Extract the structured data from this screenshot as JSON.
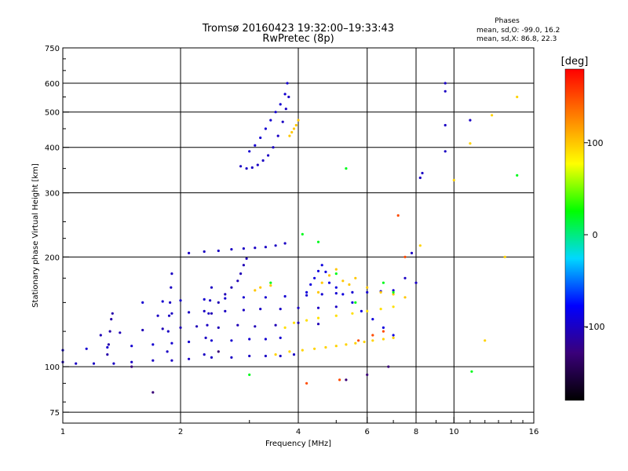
{
  "chart_data": {
    "type": "scatter",
    "title": "Tromsø 20160423 19:32:00–19:33:43",
    "subtitle": "RwPretec (8p)",
    "xlabel": "Frequency [MHz]",
    "ylabel": "Stationary phase Virtual Height [km]",
    "xscale": "log",
    "yscale": "log",
    "xlim": [
      1,
      16
    ],
    "ylim": [
      70,
      750
    ],
    "x_ticks": [
      1,
      2,
      4,
      6,
      8,
      10,
      16
    ],
    "x_tick_labels": [
      "1",
      "2",
      "4",
      "6",
      "8",
      "10",
      "16"
    ],
    "y_ticks": [
      75,
      100,
      200,
      300,
      400,
      500,
      600,
      750
    ],
    "y_tick_labels": [
      "75",
      "100",
      "200",
      "300",
      "400",
      "500",
      "600",
      "750"
    ],
    "grid": true,
    "stats": {
      "heading": "Phases",
      "line1": "mean, sd,O: -99.0, 16.2",
      "line2": "mean, sd,X:  86.8, 22.3"
    },
    "colorbar": {
      "label": "[deg]",
      "range": [
        -180,
        180
      ],
      "tick_values": [
        100,
        0,
        -100
      ],
      "tick_labels": [
        "100",
        "0",
        "-100"
      ],
      "colors": [
        "#000000",
        "#3a007a",
        "#0000ff",
        "#00d8ff",
        "#00ff00",
        "#ffff00",
        "#ff8000",
        "#ff0000"
      ]
    },
    "series": [
      {
        "trace": "o-low",
        "phase": -100,
        "points": [
          [
            1.0,
            103
          ],
          [
            1.08,
            102
          ],
          [
            1.2,
            102
          ],
          [
            1.35,
            102
          ],
          [
            1.5,
            103
          ],
          [
            1.7,
            104
          ],
          [
            1.9,
            104
          ],
          [
            2.1,
            105
          ],
          [
            2.4,
            106
          ],
          [
            2.7,
            106
          ],
          [
            3.0,
            107
          ],
          [
            3.3,
            107
          ],
          [
            3.6,
            107
          ],
          [
            3.9,
            108
          ]
        ]
      },
      {
        "trace": "o-112",
        "phase": -95,
        "points": [
          [
            1.0,
            111
          ],
          [
            1.15,
            112
          ],
          [
            1.3,
            113
          ],
          [
            1.5,
            114
          ],
          [
            1.7,
            115
          ],
          [
            1.9,
            116
          ],
          [
            2.1,
            117
          ],
          [
            2.4,
            118
          ],
          [
            2.7,
            118
          ],
          [
            3.0,
            119
          ],
          [
            3.3,
            119
          ],
          [
            3.6,
            120
          ]
        ]
      },
      {
        "trace": "o-125",
        "phase": -105,
        "points": [
          [
            1.25,
            122
          ],
          [
            1.4,
            124
          ],
          [
            1.6,
            126
          ],
          [
            1.8,
            127
          ],
          [
            2.0,
            128
          ],
          [
            2.2,
            129
          ],
          [
            2.5,
            128
          ],
          [
            2.8,
            130
          ],
          [
            3.1,
            129
          ],
          [
            3.5,
            130
          ],
          [
            4.0,
            132
          ],
          [
            4.5,
            131
          ]
        ]
      },
      {
        "trace": "o-140",
        "phase": -100,
        "points": [
          [
            1.75,
            138
          ],
          [
            1.9,
            140
          ],
          [
            2.1,
            141
          ],
          [
            2.3,
            142
          ],
          [
            2.6,
            142
          ],
          [
            2.9,
            143
          ],
          [
            3.2,
            144
          ],
          [
            3.6,
            144
          ],
          [
            4.0,
            145
          ],
          [
            4.5,
            145
          ],
          [
            5.0,
            146
          ]
        ]
      },
      {
        "trace": "o-150",
        "phase": -95,
        "points": [
          [
            1.6,
            150
          ],
          [
            1.8,
            151
          ],
          [
            2.0,
            152
          ],
          [
            2.3,
            153
          ],
          [
            2.6,
            154
          ],
          [
            2.9,
            155
          ],
          [
            3.3,
            155
          ],
          [
            3.7,
            156
          ],
          [
            4.2,
            157
          ],
          [
            4.6,
            158
          ],
          [
            5.0,
            159
          ],
          [
            5.5,
            160
          ],
          [
            6.0,
            160
          ],
          [
            6.5,
            161
          ],
          [
            7.0,
            162
          ]
        ]
      },
      {
        "trace": "o-210",
        "phase": -100,
        "points": [
          [
            2.1,
            205
          ],
          [
            2.3,
            207
          ],
          [
            2.5,
            208
          ],
          [
            2.7,
            210
          ],
          [
            2.9,
            211
          ],
          [
            3.1,
            212
          ],
          [
            3.3,
            213
          ],
          [
            3.5,
            215
          ],
          [
            3.7,
            218
          ]
        ]
      },
      {
        "trace": "o-spike-1.3",
        "phase": -110,
        "points": [
          [
            1.3,
            108
          ],
          [
            1.31,
            115
          ],
          [
            1.32,
            125
          ],
          [
            1.33,
            135
          ],
          [
            1.34,
            140
          ]
        ]
      },
      {
        "trace": "o-spike-1.85",
        "phase": -100,
        "points": [
          [
            1.85,
            110
          ],
          [
            1.86,
            125
          ],
          [
            1.87,
            138
          ],
          [
            1.88,
            150
          ],
          [
            1.89,
            165
          ],
          [
            1.9,
            180
          ]
        ]
      },
      {
        "trace": "o-spike-2.3",
        "phase": -100,
        "points": [
          [
            2.3,
            108
          ],
          [
            2.32,
            120
          ],
          [
            2.34,
            130
          ],
          [
            2.36,
            140
          ],
          [
            2.38,
            152
          ],
          [
            2.4,
            165
          ]
        ]
      },
      {
        "trace": "o-rise-2.8",
        "phase": -105,
        "points": [
          [
            2.4,
            140
          ],
          [
            2.5,
            150
          ],
          [
            2.6,
            158
          ],
          [
            2.7,
            165
          ],
          [
            2.8,
            172
          ],
          [
            2.85,
            180
          ],
          [
            2.9,
            190
          ],
          [
            2.95,
            198
          ]
        ]
      },
      {
        "trace": "o-F2",
        "phase": -100,
        "points": [
          [
            2.85,
            355
          ],
          [
            2.95,
            350
          ],
          [
            3.05,
            352
          ],
          [
            3.15,
            358
          ],
          [
            3.25,
            368
          ],
          [
            3.35,
            380
          ],
          [
            3.45,
            400
          ],
          [
            3.55,
            430
          ],
          [
            3.65,
            470
          ],
          [
            3.72,
            510
          ],
          [
            3.78,
            550
          ]
        ]
      },
      {
        "trace": "o-F2-upper",
        "phase": -95,
        "points": [
          [
            3.0,
            390
          ],
          [
            3.1,
            405
          ],
          [
            3.2,
            425
          ],
          [
            3.3,
            450
          ],
          [
            3.4,
            475
          ],
          [
            3.5,
            500
          ],
          [
            3.6,
            525
          ],
          [
            3.7,
            560
          ],
          [
            3.75,
            600
          ]
        ]
      },
      {
        "trace": "o-cluster-4.5",
        "phase": -90,
        "points": [
          [
            4.2,
            160
          ],
          [
            4.3,
            168
          ],
          [
            4.4,
            175
          ],
          [
            4.5,
            183
          ],
          [
            4.6,
            190
          ],
          [
            4.7,
            182
          ],
          [
            4.8,
            170
          ],
          [
            5.0,
            165
          ],
          [
            5.2,
            158
          ],
          [
            5.5,
            150
          ],
          [
            5.8,
            142
          ],
          [
            6.2,
            135
          ],
          [
            6.6,
            128
          ],
          [
            7.0,
            122
          ]
        ]
      },
      {
        "trace": "o-sparse",
        "phase": -100,
        "points": [
          [
            7.5,
            175
          ],
          [
            7.8,
            205
          ],
          [
            8.0,
            170
          ],
          [
            8.2,
            330
          ],
          [
            8.3,
            340
          ],
          [
            9.5,
            600
          ],
          [
            9.5,
            570
          ],
          [
            9.5,
            460
          ],
          [
            9.5,
            390
          ],
          [
            11.0,
            475
          ]
        ]
      },
      {
        "trace": "x-low",
        "phase": 95,
        "points": [
          [
            3.5,
            108
          ],
          [
            3.8,
            110
          ],
          [
            4.1,
            111
          ],
          [
            4.4,
            112
          ],
          [
            4.7,
            113
          ],
          [
            5.0,
            114
          ],
          [
            5.3,
            115
          ],
          [
            5.6,
            116
          ],
          [
            5.9,
            117
          ],
          [
            6.2,
            118
          ],
          [
            6.6,
            119
          ],
          [
            7.0,
            120
          ]
        ]
      },
      {
        "trace": "x-160",
        "phase": 100,
        "points": [
          [
            3.1,
            162
          ],
          [
            3.2,
            165
          ],
          [
            3.4,
            167
          ],
          [
            4.5,
            160
          ],
          [
            4.6,
            170
          ],
          [
            4.8,
            178
          ],
          [
            5.0,
            185
          ],
          [
            5.2,
            172
          ],
          [
            5.4,
            168
          ],
          [
            5.6,
            175
          ],
          [
            6.0,
            165
          ],
          [
            6.5,
            160
          ],
          [
            7.0,
            158
          ],
          [
            7.5,
            155
          ]
        ]
      },
      {
        "trace": "x-130",
        "phase": 90,
        "points": [
          [
            3.7,
            128
          ],
          [
            3.9,
            132
          ],
          [
            4.2,
            134
          ],
          [
            4.5,
            136
          ],
          [
            5.0,
            138
          ],
          [
            5.5,
            140
          ],
          [
            6.0,
            142
          ],
          [
            6.5,
            144
          ],
          [
            7.0,
            146
          ]
        ]
      },
      {
        "trace": "x-F2",
        "phase": 100,
        "points": [
          [
            3.8,
            430
          ],
          [
            3.85,
            440
          ],
          [
            3.9,
            450
          ],
          [
            3.95,
            460
          ],
          [
            4.0,
            475
          ]
        ]
      },
      {
        "trace": "x-sparse",
        "phase": 95,
        "points": [
          [
            8.2,
            215
          ],
          [
            10.0,
            325
          ],
          [
            11.0,
            410
          ],
          [
            12.5,
            490
          ],
          [
            13.5,
            200
          ],
          [
            14.5,
            550
          ],
          [
            12.0,
            118
          ]
        ]
      },
      {
        "trace": "mixed",
        "phase": 150,
        "points": [
          [
            4.2,
            90
          ],
          [
            5.1,
            92
          ],
          [
            5.7,
            118
          ],
          [
            6.2,
            122
          ],
          [
            6.6,
            125
          ],
          [
            7.2,
            260
          ],
          [
            7.5,
            200
          ]
        ]
      },
      {
        "trace": "mixed-2",
        "phase": 20,
        "points": [
          [
            4.1,
            231
          ],
          [
            4.5,
            220
          ],
          [
            5.0,
            180
          ],
          [
            5.6,
            150
          ],
          [
            6.6,
            170
          ],
          [
            7.0,
            160
          ],
          [
            3.4,
            170
          ],
          [
            5.3,
            350
          ],
          [
            14.5,
            335
          ],
          [
            11.1,
            97
          ],
          [
            3.0,
            95
          ]
        ]
      },
      {
        "trace": "mixed-3",
        "phase": -130,
        "points": [
          [
            1.7,
            85
          ],
          [
            1.5,
            100
          ],
          [
            2.5,
            110
          ],
          [
            6.0,
            95
          ],
          [
            5.3,
            92
          ],
          [
            6.8,
            100
          ]
        ]
      }
    ]
  }
}
